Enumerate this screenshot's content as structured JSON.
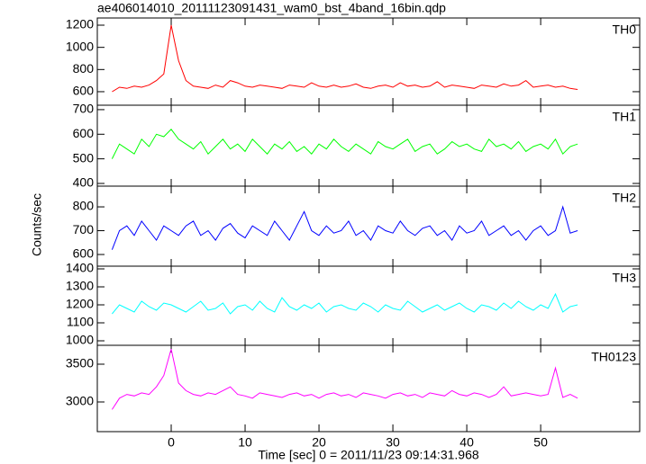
{
  "chart_data": [
    {
      "type": "line",
      "title": "ae406014010_20111123091431_wam0_bst_4band_16bin.qdp",
      "label": "TH0",
      "color": "#ff0000",
      "x": [
        -8,
        -7,
        -6,
        -5,
        -4,
        -3,
        -2,
        -1,
        0,
        1,
        2,
        3,
        4,
        5,
        6,
        7,
        8,
        9,
        10,
        11,
        12,
        13,
        14,
        15,
        16,
        17,
        18,
        19,
        20,
        21,
        22,
        23,
        24,
        25,
        26,
        27,
        28,
        29,
        30,
        31,
        32,
        33,
        34,
        35,
        36,
        37,
        38,
        39,
        40,
        41,
        42,
        43,
        44,
        45,
        46,
        47,
        48,
        49,
        50,
        51,
        52,
        53,
        54,
        55
      ],
      "values": [
        600,
        640,
        630,
        650,
        640,
        660,
        700,
        760,
        1200,
        880,
        700,
        650,
        640,
        630,
        660,
        640,
        700,
        680,
        650,
        640,
        660,
        650,
        640,
        630,
        660,
        650,
        640,
        680,
        650,
        640,
        660,
        640,
        650,
        670,
        640,
        630,
        650,
        660,
        640,
        680,
        650,
        660,
        640,
        650,
        690,
        640,
        660,
        650,
        640,
        630,
        660,
        650,
        640,
        670,
        650,
        660,
        700,
        640,
        650,
        660,
        640,
        650,
        630,
        620
      ],
      "xlim": [
        -10,
        63.4
      ],
      "ylim": [
        478,
        1265
      ],
      "yticks": [
        600,
        800,
        1000,
        1200
      ]
    },
    {
      "type": "line",
      "label": "TH1",
      "color": "#00ff00",
      "x": [
        -8,
        -7,
        -6,
        -5,
        -4,
        -3,
        -2,
        -1,
        0,
        1,
        2,
        3,
        4,
        5,
        6,
        7,
        8,
        9,
        10,
        11,
        12,
        13,
        14,
        15,
        16,
        17,
        18,
        19,
        20,
        21,
        22,
        23,
        24,
        25,
        26,
        27,
        28,
        29,
        30,
        31,
        32,
        33,
        34,
        35,
        36,
        37,
        38,
        39,
        40,
        41,
        42,
        43,
        44,
        45,
        46,
        47,
        48,
        49,
        50,
        51,
        52,
        53,
        54,
        55
      ],
      "values": [
        500,
        560,
        540,
        520,
        580,
        550,
        600,
        590,
        620,
        580,
        560,
        540,
        570,
        520,
        550,
        580,
        540,
        560,
        530,
        580,
        550,
        520,
        560,
        540,
        570,
        530,
        550,
        520,
        560,
        540,
        580,
        550,
        530,
        560,
        540,
        520,
        570,
        550,
        540,
        560,
        580,
        530,
        550,
        560,
        520,
        540,
        570,
        550,
        560,
        540,
        530,
        580,
        550,
        560,
        540,
        570,
        530,
        550,
        560,
        540,
        580,
        520,
        550,
        560
      ],
      "xlim": [
        -10,
        63.4
      ],
      "ylim": [
        389,
        718
      ],
      "yticks": [
        400,
        500,
        600,
        700
      ]
    },
    {
      "type": "line",
      "label": "TH2",
      "color": "#0000ff",
      "ylabel": "Counts/sec",
      "x": [
        -8,
        -7,
        -6,
        -5,
        -4,
        -3,
        -2,
        -1,
        0,
        1,
        2,
        3,
        4,
        5,
        6,
        7,
        8,
        9,
        10,
        11,
        12,
        13,
        14,
        15,
        16,
        17,
        18,
        19,
        20,
        21,
        22,
        23,
        24,
        25,
        26,
        27,
        28,
        29,
        30,
        31,
        32,
        33,
        34,
        35,
        36,
        37,
        38,
        39,
        40,
        41,
        42,
        43,
        44,
        45,
        46,
        47,
        48,
        49,
        50,
        51,
        52,
        53,
        54,
        55
      ],
      "values": [
        620,
        700,
        720,
        680,
        740,
        700,
        660,
        720,
        700,
        680,
        720,
        740,
        680,
        700,
        660,
        710,
        730,
        690,
        670,
        720,
        700,
        680,
        740,
        700,
        660,
        720,
        780,
        700,
        680,
        720,
        690,
        700,
        740,
        680,
        700,
        660,
        720,
        700,
        690,
        740,
        700,
        680,
        710,
        720,
        680,
        700,
        660,
        720,
        690,
        700,
        740,
        680,
        700,
        720,
        680,
        700,
        660,
        700,
        720,
        680,
        700,
        800,
        690,
        700
      ],
      "xlim": [
        -10,
        63.4
      ],
      "ylim": [
        551,
        887
      ],
      "yticks": [
        600,
        700,
        800
      ]
    },
    {
      "type": "line",
      "label": "TH3",
      "color": "#00ffff",
      "x": [
        -8,
        -7,
        -6,
        -5,
        -4,
        -3,
        -2,
        -1,
        0,
        1,
        2,
        3,
        4,
        5,
        6,
        7,
        8,
        9,
        10,
        11,
        12,
        13,
        14,
        15,
        16,
        17,
        18,
        19,
        20,
        21,
        22,
        23,
        24,
        25,
        26,
        27,
        28,
        29,
        30,
        31,
        32,
        33,
        34,
        35,
        36,
        37,
        38,
        39,
        40,
        41,
        42,
        43,
        44,
        45,
        46,
        47,
        48,
        49,
        50,
        51,
        52,
        53,
        54,
        55
      ],
      "values": [
        1150,
        1200,
        1180,
        1160,
        1220,
        1190,
        1170,
        1210,
        1200,
        1180,
        1160,
        1190,
        1220,
        1170,
        1180,
        1210,
        1150,
        1190,
        1200,
        1170,
        1220,
        1180,
        1160,
        1240,
        1190,
        1170,
        1200,
        1180,
        1210,
        1160,
        1190,
        1200,
        1180,
        1170,
        1210,
        1190,
        1160,
        1200,
        1180,
        1170,
        1220,
        1190,
        1160,
        1180,
        1200,
        1170,
        1190,
        1210,
        1180,
        1160,
        1200,
        1190,
        1170,
        1210,
        1180,
        1220,
        1190,
        1170,
        1200,
        1180,
        1260,
        1160,
        1190,
        1200
      ],
      "xlim": [
        -10,
        63.4
      ],
      "ylim": [
        975,
        1415
      ],
      "yticks": [
        1000,
        1100,
        1200,
        1300,
        1400
      ]
    },
    {
      "type": "line",
      "label": "TH0123",
      "color": "#ff00ff",
      "xlabel": "Time [sec] 0 = 2011/11/23 09:14:31.968",
      "x": [
        -8,
        -7,
        -6,
        -5,
        -4,
        -3,
        -2,
        -1,
        0,
        1,
        2,
        3,
        4,
        5,
        6,
        7,
        8,
        9,
        10,
        11,
        12,
        13,
        14,
        15,
        16,
        17,
        18,
        19,
        20,
        21,
        22,
        23,
        24,
        25,
        26,
        27,
        28,
        29,
        30,
        31,
        32,
        33,
        34,
        35,
        36,
        37,
        38,
        39,
        40,
        41,
        42,
        43,
        44,
        45,
        46,
        47,
        48,
        49,
        50,
        51,
        52,
        53,
        54,
        55
      ],
      "values": [
        2900,
        3050,
        3100,
        3080,
        3120,
        3100,
        3200,
        3350,
        3700,
        3250,
        3150,
        3100,
        3080,
        3120,
        3100,
        3150,
        3200,
        3100,
        3080,
        3050,
        3120,
        3100,
        3080,
        3060,
        3100,
        3120,
        3080,
        3100,
        3050,
        3100,
        3120,
        3080,
        3100,
        3060,
        3120,
        3100,
        3080,
        3050,
        3100,
        3120,
        3080,
        3100,
        3060,
        3120,
        3100,
        3080,
        3150,
        3100,
        3080,
        3120,
        3100,
        3060,
        3100,
        3200,
        3080,
        3100,
        3120,
        3100,
        3080,
        3100,
        3450,
        3060,
        3100,
        3050
      ],
      "xlim": [
        -10,
        63.4
      ],
      "ylim": [
        2607,
        3750
      ],
      "yticks": [
        3000,
        3500
      ],
      "xticks": [
        0,
        10,
        20,
        30,
        40,
        50
      ]
    }
  ]
}
